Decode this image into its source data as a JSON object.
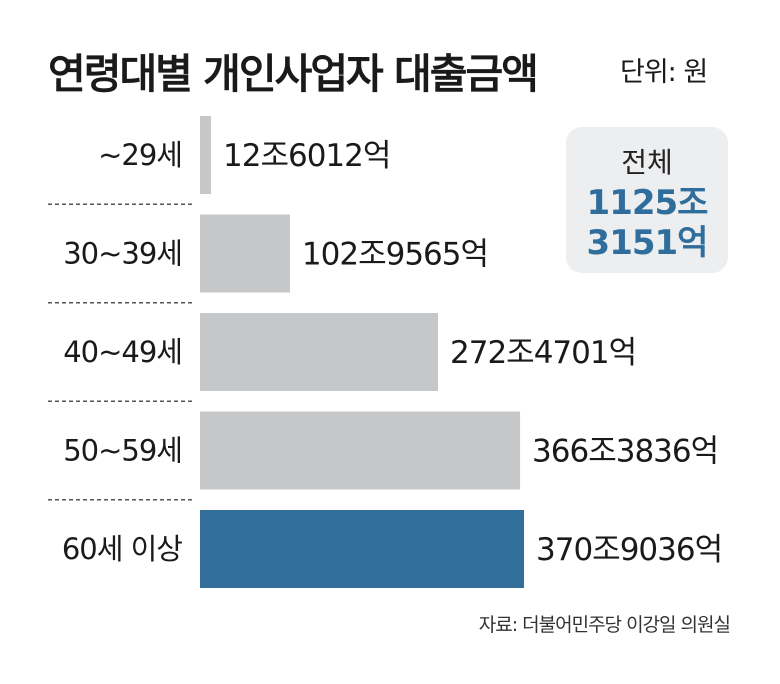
{
  "title": "연령대별 개인사업자 대출금액",
  "unit": "단위: 원",
  "total": {
    "label": "전체",
    "value_line1": "1125조",
    "value_line2": "3151억"
  },
  "source": "자료: 더불어민주당 이강일 의원실",
  "colors": {
    "bar_default": "#c6c7c9",
    "bar_highlight": "#336f9b",
    "total_text": "#2f6e9c"
  },
  "chart_data": {
    "type": "bar",
    "orientation": "horizontal",
    "unit": "억원",
    "categories": [
      "~29세",
      "30~39세",
      "40~49세",
      "50~59세",
      "60세 이상"
    ],
    "values": [
      126012,
      1029565,
      2724701,
      3663836,
      3709036
    ],
    "data_labels": [
      "12조6012억",
      "102조9565억",
      "272조4701억",
      "366조3836억",
      "370조9036억"
    ],
    "highlight_index": 4,
    "grid": false
  }
}
